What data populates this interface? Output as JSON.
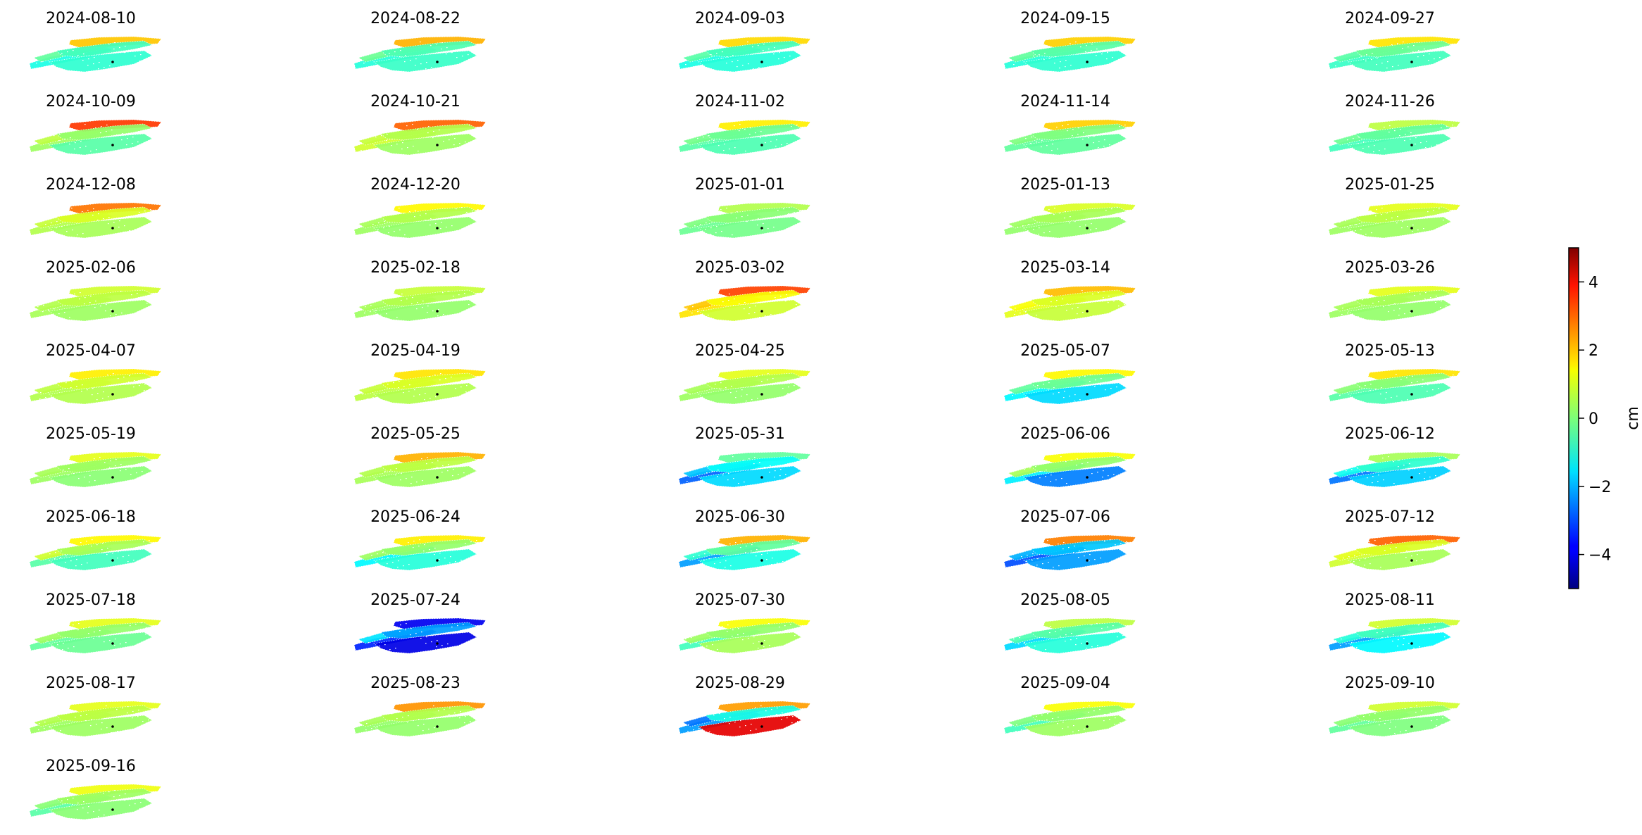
{
  "chart_data": {
    "type": "heatmap",
    "colormap": "jet",
    "colorbar": {
      "label": "cm",
      "vmin": -5,
      "vmax": 5,
      "ticks": [
        4,
        2,
        0,
        -2,
        -4
      ],
      "tick_labels": [
        "4",
        "2",
        "0",
        "−2",
        "−4"
      ]
    },
    "panels": [
      {
        "date": "2024-08-10",
        "values": [
          -1.0,
          -0.3,
          1.8,
          -0.6,
          -0.8
        ]
      },
      {
        "date": "2024-08-22",
        "values": [
          -0.9,
          -0.2,
          2.0,
          -0.5,
          -0.7
        ]
      },
      {
        "date": "2024-09-03",
        "values": [
          -1.0,
          -0.4,
          1.6,
          -0.6,
          -0.9
        ]
      },
      {
        "date": "2024-09-15",
        "values": [
          -0.9,
          -0.3,
          1.7,
          -0.4,
          -0.8
        ]
      },
      {
        "date": "2024-09-27",
        "values": [
          -0.7,
          -0.4,
          1.5,
          -0.2,
          -0.6
        ]
      },
      {
        "date": "2024-10-09",
        "values": [
          0.3,
          0.6,
          3.2,
          0.2,
          -0.4
        ]
      },
      {
        "date": "2024-10-21",
        "values": [
          0.8,
          0.7,
          2.8,
          0.5,
          0.3
        ]
      },
      {
        "date": "2024-11-02",
        "values": [
          -0.4,
          -0.1,
          1.4,
          -0.2,
          -0.5
        ]
      },
      {
        "date": "2024-11-14",
        "values": [
          -0.3,
          0.0,
          1.7,
          0.0,
          -0.3
        ]
      },
      {
        "date": "2024-11-26",
        "values": [
          -0.6,
          -0.2,
          0.6,
          -0.3,
          -0.5
        ]
      },
      {
        "date": "2024-12-08",
        "values": [
          0.5,
          0.7,
          2.6,
          0.9,
          0.4
        ]
      },
      {
        "date": "2024-12-20",
        "values": [
          0.3,
          0.4,
          1.3,
          0.5,
          0.2
        ]
      },
      {
        "date": "2025-01-01",
        "values": [
          -0.2,
          0.0,
          0.5,
          0.1,
          -0.1
        ]
      },
      {
        "date": "2025-01-13",
        "values": [
          0.2,
          0.3,
          0.9,
          0.4,
          0.2
        ]
      },
      {
        "date": "2025-01-25",
        "values": [
          0.3,
          0.4,
          1.0,
          0.6,
          0.3
        ]
      },
      {
        "date": "2025-02-06",
        "values": [
          0.4,
          0.5,
          0.8,
          0.6,
          0.3
        ]
      },
      {
        "date": "2025-02-18",
        "values": [
          0.3,
          0.4,
          0.7,
          0.5,
          0.2
        ]
      },
      {
        "date": "2025-03-02",
        "values": [
          1.5,
          1.8,
          3.1,
          1.2,
          0.8
        ]
      },
      {
        "date": "2025-03-14",
        "values": [
          1.0,
          1.2,
          1.9,
          0.9,
          0.7
        ]
      },
      {
        "date": "2025-03-26",
        "values": [
          0.3,
          0.4,
          1.0,
          0.4,
          0.2
        ]
      },
      {
        "date": "2025-04-07",
        "values": [
          0.5,
          0.6,
          1.4,
          0.8,
          0.5
        ]
      },
      {
        "date": "2025-04-19",
        "values": [
          0.6,
          0.7,
          1.5,
          0.9,
          0.5
        ]
      },
      {
        "date": "2025-04-25",
        "values": [
          0.3,
          0.4,
          1.0,
          0.5,
          0.2
        ]
      },
      {
        "date": "2025-05-07",
        "values": [
          -1.3,
          -0.3,
          1.3,
          -0.2,
          -1.6
        ]
      },
      {
        "date": "2025-05-13",
        "values": [
          -0.4,
          0.1,
          1.5,
          0.1,
          -0.5
        ]
      },
      {
        "date": "2025-05-19",
        "values": [
          0.3,
          0.4,
          1.0,
          0.3,
          0.1
        ]
      },
      {
        "date": "2025-05-25",
        "values": [
          0.4,
          0.5,
          2.0,
          0.6,
          0.3
        ]
      },
      {
        "date": "2025-05-31",
        "values": [
          -2.8,
          -1.8,
          -0.3,
          -1.2,
          -1.6
        ]
      },
      {
        "date": "2025-06-06",
        "values": [
          -1.4,
          0.4,
          1.2,
          0.2,
          -2.5
        ]
      },
      {
        "date": "2025-06-12",
        "values": [
          -2.6,
          -1.1,
          0.4,
          -0.8,
          -1.7
        ]
      },
      {
        "date": "2025-06-18",
        "values": [
          -0.4,
          0.8,
          1.3,
          0.4,
          -0.6
        ]
      },
      {
        "date": "2025-06-24",
        "values": [
          -1.3,
          0.3,
          1.4,
          0.2,
          -0.9
        ]
      },
      {
        "date": "2025-06-30",
        "values": [
          -2.2,
          -0.8,
          2.0,
          -0.3,
          -1.0
        ]
      },
      {
        "date": "2025-07-06",
        "values": [
          -3.0,
          -2.0,
          2.5,
          -1.8,
          -2.2
        ]
      },
      {
        "date": "2025-07-12",
        "values": [
          0.8,
          1.0,
          2.8,
          0.9,
          0.4
        ]
      },
      {
        "date": "2025-07-18",
        "values": [
          -0.3,
          0.3,
          1.0,
          0.2,
          -0.2
        ]
      },
      {
        "date": "2025-07-24",
        "values": [
          -3.4,
          -1.5,
          -3.9,
          -2.2,
          -4.0
        ]
      },
      {
        "date": "2025-07-30",
        "values": [
          -0.6,
          0.3,
          1.2,
          0.2,
          0.4
        ]
      },
      {
        "date": "2025-08-05",
        "values": [
          -1.6,
          -0.5,
          0.6,
          -0.4,
          -0.9
        ]
      },
      {
        "date": "2025-08-11",
        "values": [
          -2.2,
          -0.9,
          0.8,
          -0.6,
          -1.3
        ]
      },
      {
        "date": "2025-08-17",
        "values": [
          0.3,
          0.5,
          1.0,
          0.6,
          0.3
        ]
      },
      {
        "date": "2025-08-23",
        "values": [
          0.2,
          0.4,
          2.3,
          0.5,
          0.2
        ]
      },
      {
        "date": "2025-08-29",
        "values": [
          -2.2,
          -2.6,
          2.2,
          -1.0,
          4.0
        ]
      },
      {
        "date": "2025-09-04",
        "values": [
          -0.6,
          0.0,
          1.2,
          0.2,
          0.3
        ]
      },
      {
        "date": "2025-09-10",
        "values": [
          -0.3,
          0.1,
          0.8,
          0.2,
          0.0
        ]
      },
      {
        "date": "2025-09-16",
        "values": [
          -0.4,
          0.1,
          1.1,
          0.3,
          0.1
        ]
      }
    ]
  }
}
